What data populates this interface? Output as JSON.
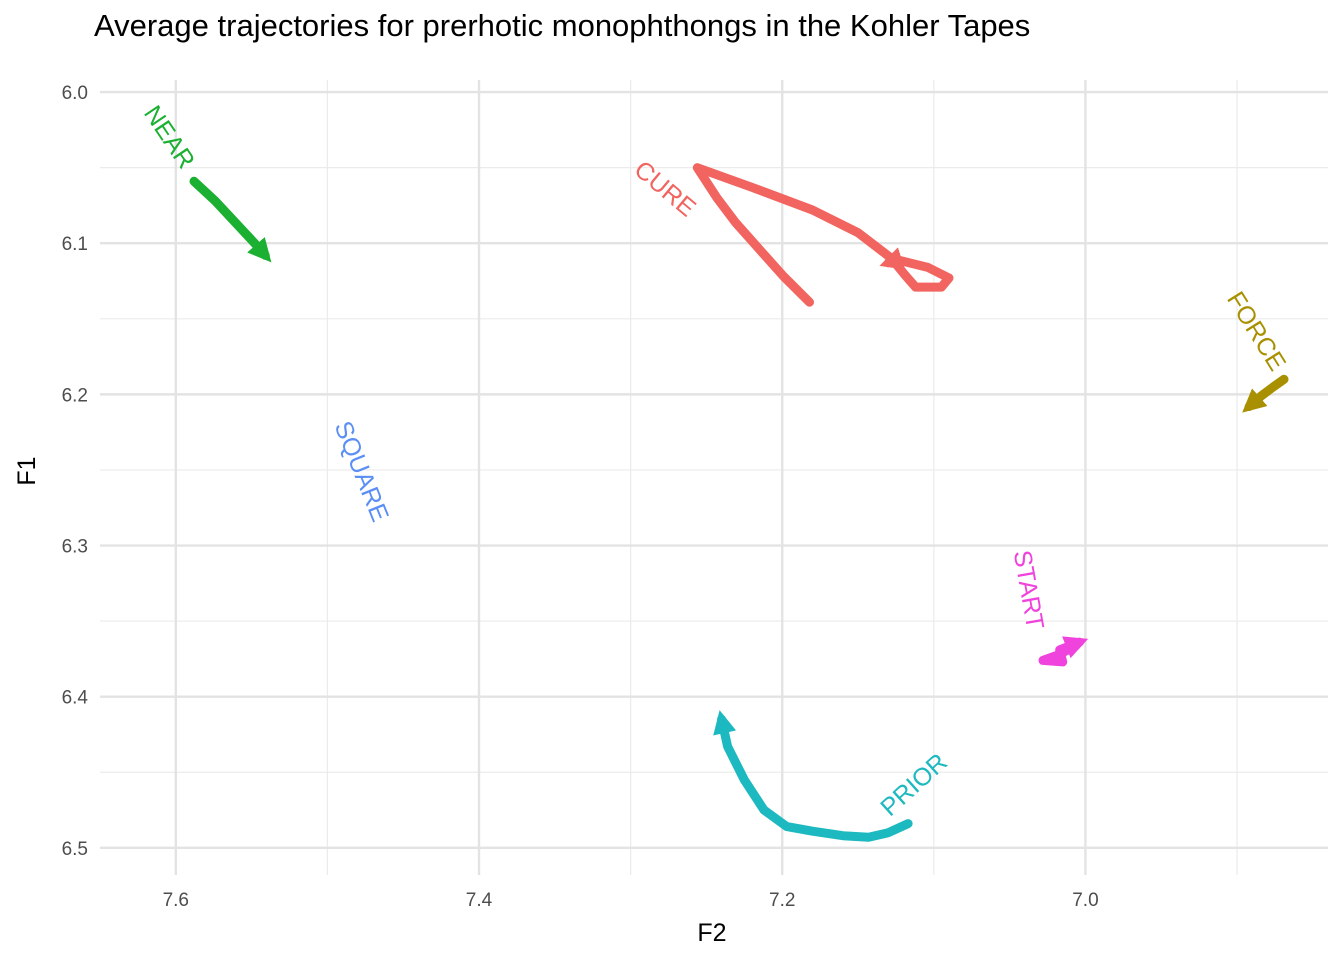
{
  "chart_data": {
    "type": "line",
    "title": "Average trajectories for prerhotic monophthongs in the Kohler Tapes",
    "xlabel": "F2",
    "ylabel": "F1",
    "x_reversed": true,
    "y_reversed": true,
    "xlim": [
      7.65,
      6.84
    ],
    "ylim": [
      5.992,
      6.518
    ],
    "x_ticks": [
      "7.6",
      "7.4",
      "7.2",
      "7.0"
    ],
    "x_tick_values": [
      7.6,
      7.4,
      7.2,
      7.0
    ],
    "y_ticks": [
      "6.0",
      "6.1",
      "6.2",
      "6.3",
      "6.4",
      "6.5"
    ],
    "y_tick_values": [
      6.0,
      6.1,
      6.2,
      6.3,
      6.4,
      6.5
    ],
    "grid": true,
    "legend": "none",
    "series": [
      {
        "name": "NEAR",
        "color": "#1bb031",
        "points": [
          [
            7.588,
            6.059
          ],
          [
            7.574,
            6.072
          ],
          [
            7.561,
            6.086
          ],
          [
            7.548,
            6.1
          ],
          [
            7.541,
            6.108
          ]
        ],
        "label_angle": 56
      },
      {
        "name": "CURE",
        "color": "#f1645f",
        "points": [
          [
            7.182,
            6.139
          ],
          [
            7.199,
            6.122
          ],
          [
            7.216,
            6.103
          ],
          [
            7.231,
            6.086
          ],
          [
            7.243,
            6.07
          ],
          [
            7.256,
            6.05
          ],
          [
            7.22,
            6.063
          ],
          [
            7.18,
            6.078
          ],
          [
            7.15,
            6.093
          ],
          [
            7.128,
            6.11
          ],
          [
            7.119,
            6.121
          ],
          [
            7.112,
            6.129
          ],
          [
            7.095,
            6.129
          ],
          [
            7.09,
            6.123
          ],
          [
            7.104,
            6.116
          ],
          [
            7.124,
            6.111
          ],
          [
            7.13,
            6.113
          ]
        ],
        "label_angle": 40
      },
      {
        "name": "FORCE",
        "color": "#a89000",
        "points": [
          [
            6.869,
            6.19
          ],
          [
            6.876,
            6.195
          ],
          [
            6.884,
            6.201
          ],
          [
            6.892,
            6.208
          ]
        ],
        "label_angle": 58
      },
      {
        "name": "SQUARE",
        "color": "#5b8ff5",
        "points": [],
        "label_angle": 68
      },
      {
        "name": "START",
        "color": "#f042dc",
        "points": [
          [
            7.006,
            6.366
          ],
          [
            7.017,
            6.372
          ],
          [
            7.028,
            6.376
          ],
          [
            7.015,
            6.377
          ],
          [
            7.017,
            6.369
          ],
          [
            7.004,
            6.364
          ]
        ],
        "label_angle": 80
      },
      {
        "name": "PRIOR",
        "color": "#1db9c0",
        "points": [
          [
            7.117,
            6.484
          ],
          [
            7.13,
            6.49
          ],
          [
            7.143,
            6.493
          ],
          [
            7.16,
            6.492
          ],
          [
            7.18,
            6.489
          ],
          [
            7.197,
            6.486
          ],
          [
            7.212,
            6.475
          ],
          [
            7.225,
            6.455
          ],
          [
            7.236,
            6.433
          ],
          [
            7.24,
            6.415
          ]
        ],
        "label_angle": -42
      }
    ]
  }
}
